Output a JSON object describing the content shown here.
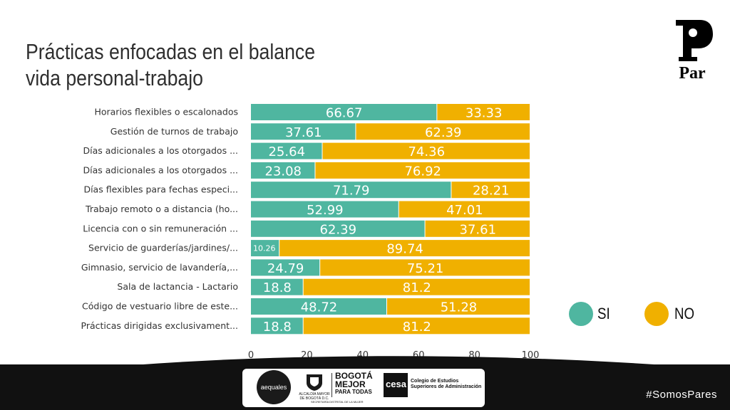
{
  "title": {
    "line1": "Prácticas enfocadas en el balance",
    "line2": "vida personal-trabajo"
  },
  "colors": {
    "si": "#4fb6a0",
    "no": "#f0b000",
    "text": "#333333",
    "axis": "#333333"
  },
  "legend": {
    "si_label": "SI",
    "no_label": "NO"
  },
  "brand": {
    "par_label": "Par",
    "hashtag": "#SomosPares"
  },
  "footer_logos": {
    "aequales": "aequales",
    "alcaldia": "ALCALDÍA MAYOR DE BOGOTÁ D.C.",
    "bogota_line1": "BOGOTÁ",
    "bogota_line2": "MEJOR",
    "bogota_line3": "PARA TODAS",
    "secretaria": "SECRETARÍA DISTRITAL DE LA MUJER",
    "cesa_mark": "cesa",
    "cesa_line1": "Colegio de Estudios",
    "cesa_line2": "Superiores de Administración"
  },
  "chart_data": {
    "type": "bar",
    "orientation": "horizontal",
    "stacked": true,
    "categories": [
      "Horarios flexibles o escalonados",
      "Gestión de turnos de trabajo",
      "Días adicionales a los otorgados ...",
      "Días adicionales a los otorgados ...",
      "Días flexibles para fechas especi...",
      "Trabajo remoto o a distancia (ho...",
      "Licencia con o sin remuneración ...",
      "Servicio de guarderías/jardines/...",
      "Gimnasio, servicio de lavandería,...",
      "Sala de lactancia - Lactario",
      "Código de vestuario libre de este...",
      "Prácticas dirigidas exclusivament..."
    ],
    "series": [
      {
        "name": "SI",
        "values": [
          66.67,
          37.61,
          25.64,
          23.08,
          71.79,
          52.99,
          62.39,
          10.26,
          24.79,
          18.8,
          48.72,
          18.8
        ]
      },
      {
        "name": "NO",
        "values": [
          33.33,
          62.39,
          74.36,
          76.92,
          28.21,
          47.01,
          37.61,
          89.74,
          75.21,
          81.2,
          51.28,
          81.2
        ]
      }
    ],
    "xlim": [
      0,
      100
    ],
    "xticks": [
      0,
      20,
      40,
      60,
      80,
      100
    ],
    "grid": false,
    "legend_position": "right"
  }
}
